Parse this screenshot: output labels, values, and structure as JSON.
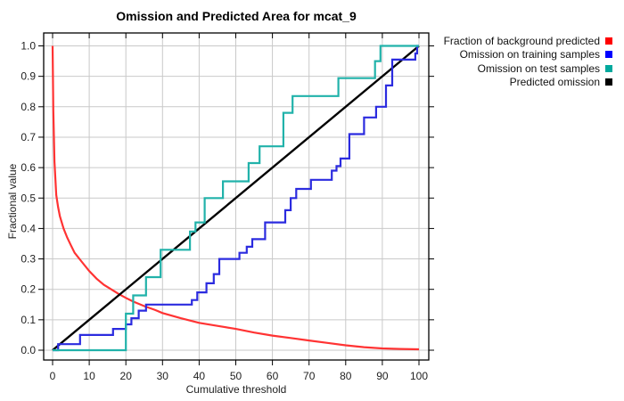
{
  "title": "Omission and Predicted Area for mcat_9",
  "legend": {
    "items": [
      {
        "label": "Fraction of background predicted",
        "color": "#ff0000"
      },
      {
        "label": "Omission on training samples",
        "color": "#0000ff"
      },
      {
        "label": "Omission on test samples",
        "color": "#00a99d"
      },
      {
        "label": "Predicted omission",
        "color": "#000000"
      }
    ]
  },
  "chart_data": {
    "type": "line",
    "title": "Omission and Predicted Area for mcat_9",
    "xlabel": "Cumulative threshold",
    "ylabel": "Fractional value",
    "xlim": [
      0,
      100
    ],
    "ylim": [
      0.0,
      1.0
    ],
    "grid": true,
    "legend_position": "top-right-outside",
    "x_ticks": [
      0,
      10,
      20,
      30,
      40,
      50,
      60,
      70,
      80,
      90,
      100
    ],
    "x_tick_labels": [
      "0",
      "10",
      "20",
      "30",
      "40",
      "50",
      "60",
      "70",
      "80",
      "90",
      "100"
    ],
    "y_ticks": [
      0.0,
      0.1,
      0.2,
      0.3,
      0.4,
      0.5,
      0.6,
      0.7,
      0.8,
      0.9,
      1.0
    ],
    "y_tick_labels": [
      "0.0",
      "0.1",
      "0.2",
      "0.3",
      "0.4",
      "0.5",
      "0.6",
      "0.7",
      "0.8",
      "0.9",
      "1.0"
    ],
    "gridline_color": "#c9c9c9",
    "frame_color": "#000000",
    "series": [
      {
        "name": "Fraction of background predicted",
        "color": "#ff3333",
        "style": "line",
        "points": [
          [
            0,
            1.0
          ],
          [
            0.2,
            0.79
          ],
          [
            0.5,
            0.62
          ],
          [
            1,
            0.51
          ],
          [
            1.5,
            0.47
          ],
          [
            2,
            0.44
          ],
          [
            3,
            0.4
          ],
          [
            4,
            0.37
          ],
          [
            5,
            0.345
          ],
          [
            6,
            0.32
          ],
          [
            8,
            0.29
          ],
          [
            10,
            0.26
          ],
          [
            12,
            0.235
          ],
          [
            14,
            0.215
          ],
          [
            16,
            0.2
          ],
          [
            18,
            0.185
          ],
          [
            20,
            0.172
          ],
          [
            22,
            0.16
          ],
          [
            25,
            0.145
          ],
          [
            28,
            0.132
          ],
          [
            30,
            0.122
          ],
          [
            35,
            0.105
          ],
          [
            40,
            0.09
          ],
          [
            45,
            0.08
          ],
          [
            50,
            0.07
          ],
          [
            55,
            0.058
          ],
          [
            60,
            0.048
          ],
          [
            65,
            0.04
          ],
          [
            70,
            0.032
          ],
          [
            75,
            0.024
          ],
          [
            80,
            0.016
          ],
          [
            85,
            0.01
          ],
          [
            90,
            0.006
          ],
          [
            95,
            0.004
          ],
          [
            100,
            0.003
          ]
        ]
      },
      {
        "name": "Predicted omission",
        "color": "#000000",
        "style": "line",
        "points": [
          [
            0,
            0
          ],
          [
            100,
            1.0
          ]
        ]
      },
      {
        "name": "Omission on training samples",
        "color": "#2b2bdf",
        "style": "step",
        "points": [
          [
            0,
            0
          ],
          [
            1.5,
            0.02
          ],
          [
            7.5,
            0.05
          ],
          [
            16.5,
            0.07
          ],
          [
            20,
            0.085
          ],
          [
            21.5,
            0.105
          ],
          [
            23.5,
            0.13
          ],
          [
            25.5,
            0.15
          ],
          [
            38,
            0.165
          ],
          [
            39.5,
            0.19
          ],
          [
            42,
            0.22
          ],
          [
            44,
            0.25
          ],
          [
            45.5,
            0.3
          ],
          [
            51,
            0.32
          ],
          [
            53,
            0.34
          ],
          [
            54.5,
            0.365
          ],
          [
            58,
            0.42
          ],
          [
            63.5,
            0.46
          ],
          [
            65,
            0.5
          ],
          [
            66.5,
            0.53
          ],
          [
            70.5,
            0.56
          ],
          [
            76.2,
            0.59
          ],
          [
            77.5,
            0.605
          ],
          [
            78.6,
            0.63
          ],
          [
            81,
            0.71
          ],
          [
            85,
            0.765
          ],
          [
            88.3,
            0.8
          ],
          [
            91,
            0.87
          ],
          [
            92.7,
            0.955
          ],
          [
            99,
            0.975
          ],
          [
            99.5,
            1.0
          ],
          [
            100,
            1.0
          ]
        ]
      },
      {
        "name": "Omission on test samples",
        "color": "#21b2aa",
        "style": "step",
        "points": [
          [
            0,
            0
          ],
          [
            20,
            0.12
          ],
          [
            22,
            0.18
          ],
          [
            25.5,
            0.24
          ],
          [
            29.5,
            0.33
          ],
          [
            37.5,
            0.39
          ],
          [
            39,
            0.42
          ],
          [
            41.5,
            0.5
          ],
          [
            46.5,
            0.555
          ],
          [
            53.5,
            0.615
          ],
          [
            56.5,
            0.67
          ],
          [
            63,
            0.78
          ],
          [
            65.5,
            0.835
          ],
          [
            78,
            0.894
          ],
          [
            88,
            0.95
          ],
          [
            89.5,
            1.0
          ],
          [
            100,
            1.0
          ]
        ]
      }
    ]
  }
}
